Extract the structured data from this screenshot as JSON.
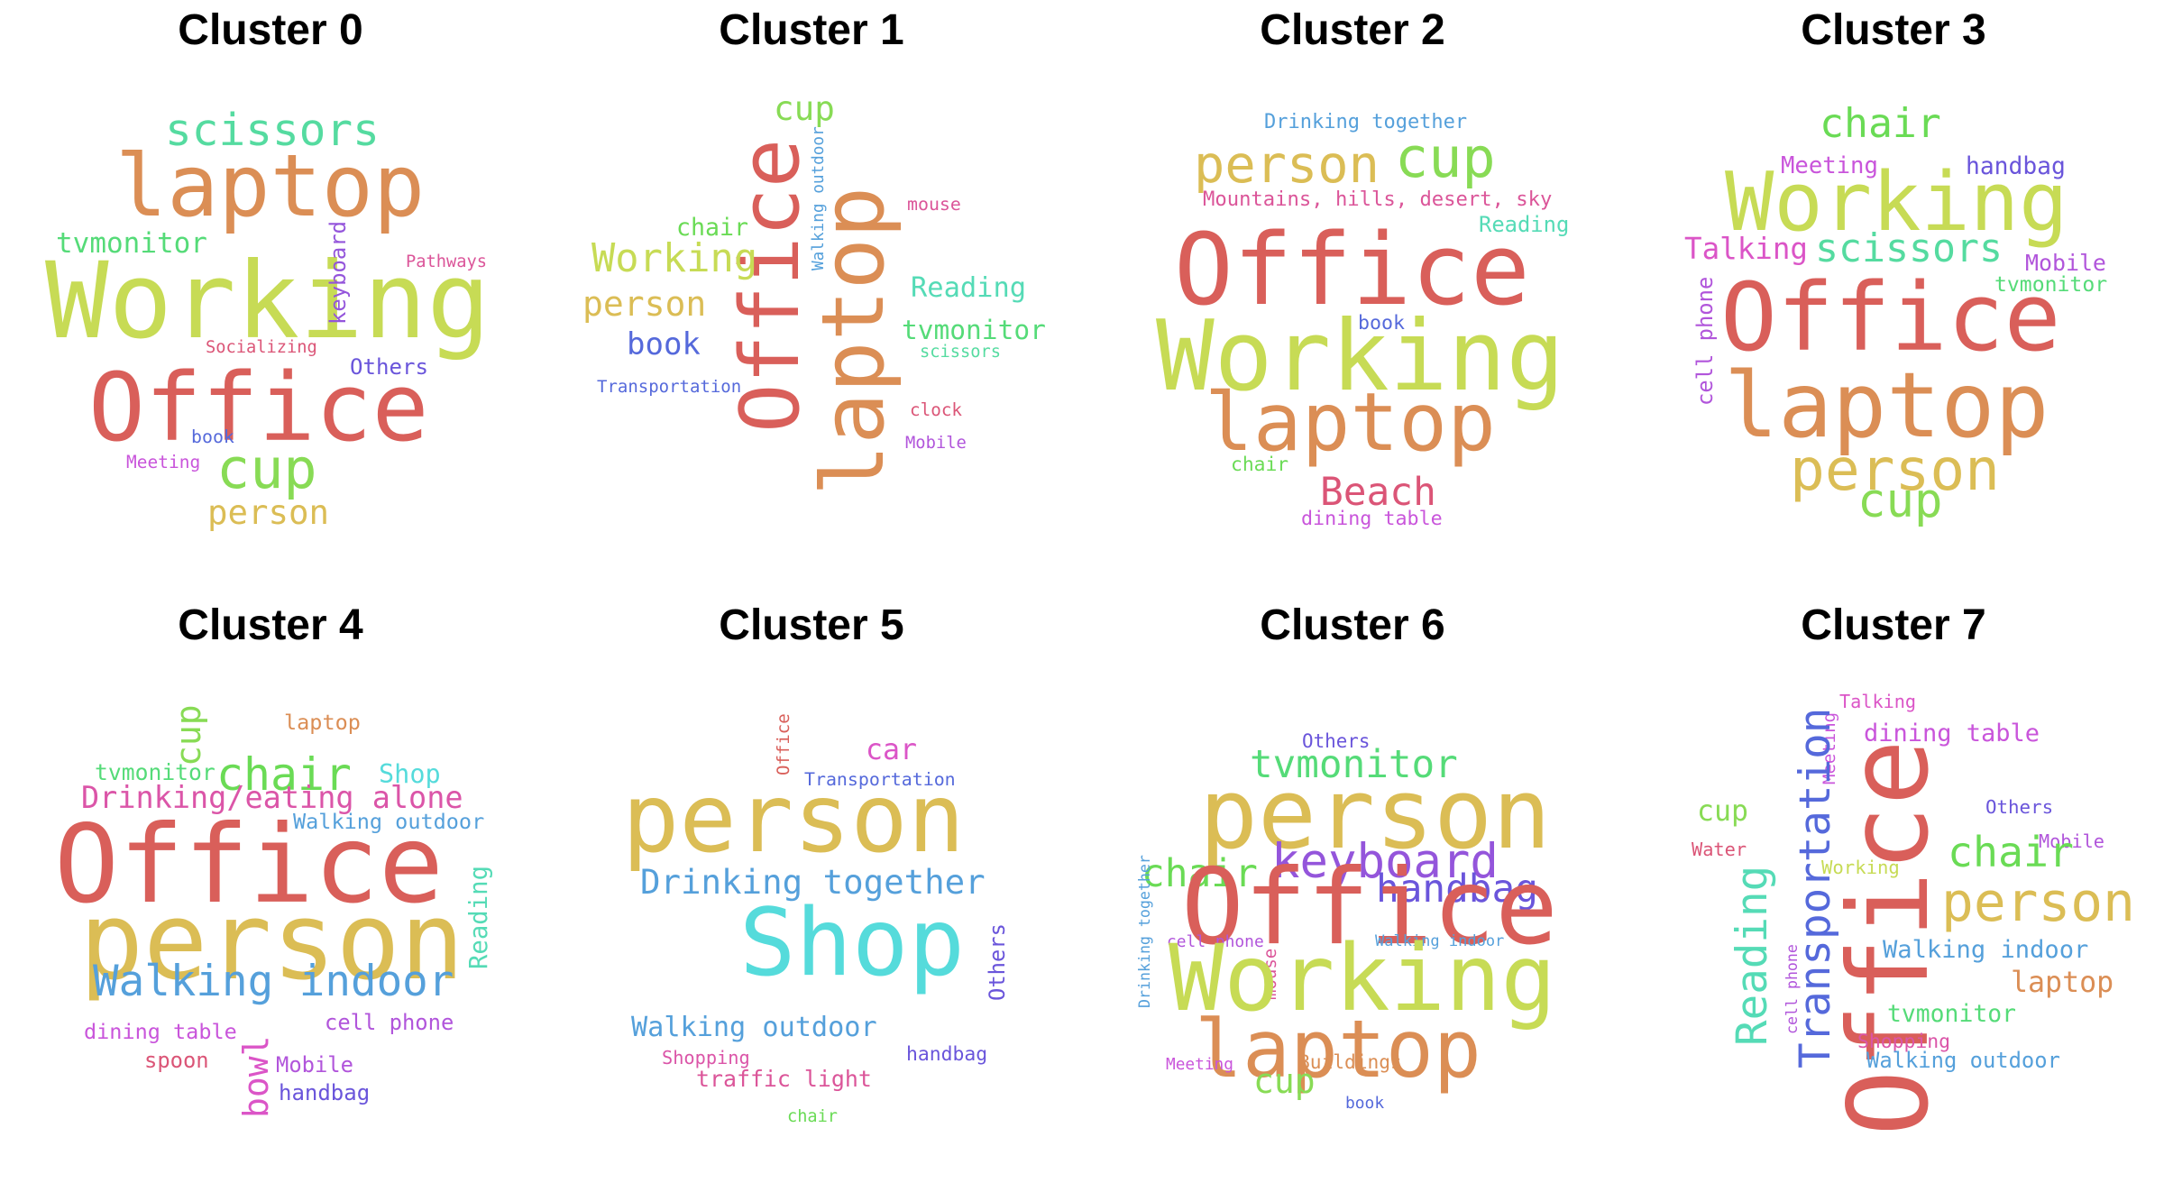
{
  "panels": [
    {
      "title": "Cluster 0",
      "words": [
        {
          "text": "Working",
          "color": "#c7db55"
        },
        {
          "text": "Office",
          "color": "#d95f5a"
        },
        {
          "text": "laptop",
          "color": "#db8e55"
        },
        {
          "text": "scissors",
          "color": "#55dba0"
        },
        {
          "text": "cup",
          "color": "#88db55"
        },
        {
          "text": "person",
          "color": "#dbbd55"
        },
        {
          "text": "tvmonitor",
          "color": "#55db78"
        },
        {
          "text": "keyboard",
          "color": "#9455db"
        },
        {
          "text": "Others",
          "color": "#6a55db"
        },
        {
          "text": "Pathways",
          "color": "#db5599"
        },
        {
          "text": "Socializing",
          "color": "#db5577"
        },
        {
          "text": "book",
          "color": "#5569db"
        },
        {
          "text": "Meeting",
          "color": "#c955db"
        }
      ]
    },
    {
      "title": "Cluster 1",
      "words": [
        {
          "text": "Office",
          "color": "#d95f5a"
        },
        {
          "text": "laptop",
          "color": "#db8e55"
        },
        {
          "text": "cup",
          "color": "#88db55"
        },
        {
          "text": "Walking outdoor",
          "color": "#55a0db"
        },
        {
          "text": "mouse",
          "color": "#db5599"
        },
        {
          "text": "chair",
          "color": "#6adb55"
        },
        {
          "text": "Working",
          "color": "#c7db55"
        },
        {
          "text": "person",
          "color": "#dbbd55"
        },
        {
          "text": "Reading",
          "color": "#55dbb6"
        },
        {
          "text": "tvmonitor",
          "color": "#55db78"
        },
        {
          "text": "book",
          "color": "#5569db"
        },
        {
          "text": "scissors",
          "color": "#55dba0"
        },
        {
          "text": "Transportation",
          "color": "#5569db"
        },
        {
          "text": "clock",
          "color": "#db5577"
        },
        {
          "text": "Mobile",
          "color": "#b155db"
        }
      ]
    },
    {
      "title": "Cluster 2",
      "words": [
        {
          "text": "Drinking together",
          "color": "#55a0db"
        },
        {
          "text": "person",
          "color": "#dbbd55"
        },
        {
          "text": "cup",
          "color": "#88db55"
        },
        {
          "text": "Mountains, hills, desert, sky",
          "color": "#db5599"
        },
        {
          "text": "Reading",
          "color": "#55dbb6"
        },
        {
          "text": "Office",
          "color": "#d95f5a"
        },
        {
          "text": "Working",
          "color": "#c7db55"
        },
        {
          "text": "book",
          "color": "#5569db"
        },
        {
          "text": "laptop",
          "color": "#db8e55"
        },
        {
          "text": "chair",
          "color": "#6adb55"
        },
        {
          "text": "Beach",
          "color": "#db5577"
        },
        {
          "text": "dining table",
          "color": "#c955db"
        }
      ]
    },
    {
      "title": "Cluster 3",
      "words": [
        {
          "text": "chair",
          "color": "#6adb55"
        },
        {
          "text": "Meeting",
          "color": "#c955db"
        },
        {
          "text": "handbag",
          "color": "#6a55db"
        },
        {
          "text": "Working",
          "color": "#c7db55"
        },
        {
          "text": "Talking",
          "color": "#db55c7"
        },
        {
          "text": "scissors",
          "color": "#55dba0"
        },
        {
          "text": "Mobile",
          "color": "#b155db"
        },
        {
          "text": "tvmonitor",
          "color": "#55db78"
        },
        {
          "text": "cell phone",
          "color": "#b155db"
        },
        {
          "text": "Office",
          "color": "#d95f5a"
        },
        {
          "text": "laptop",
          "color": "#db8e55"
        },
        {
          "text": "person",
          "color": "#dbbd55"
        },
        {
          "text": "cup",
          "color": "#88db55"
        }
      ]
    },
    {
      "title": "Cluster 4",
      "words": [
        {
          "text": "cup",
          "color": "#88db55"
        },
        {
          "text": "laptop",
          "color": "#db8e55"
        },
        {
          "text": "tvmonitor",
          "color": "#55db78"
        },
        {
          "text": "chair",
          "color": "#6adb55"
        },
        {
          "text": "Shop",
          "color": "#55dbdb"
        },
        {
          "text": "Drinking/eating alone",
          "color": "#db55a8"
        },
        {
          "text": "Walking outdoor",
          "color": "#55a0db"
        },
        {
          "text": "Office",
          "color": "#d95f5a"
        },
        {
          "text": "Reading",
          "color": "#55dbb6"
        },
        {
          "text": "person",
          "color": "#dbbd55"
        },
        {
          "text": "Walking indoor",
          "color": "#55a0db"
        },
        {
          "text": "dining table",
          "color": "#c955db"
        },
        {
          "text": "bowl",
          "color": "#db55c7"
        },
        {
          "text": "cell phone",
          "color": "#b155db"
        },
        {
          "text": "spoon",
          "color": "#db5577"
        },
        {
          "text": "Mobile",
          "color": "#b155db"
        },
        {
          "text": "handbag",
          "color": "#6a55db"
        }
      ]
    },
    {
      "title": "Cluster 5",
      "words": [
        {
          "text": "Office",
          "color": "#d95f5a"
        },
        {
          "text": "car",
          "color": "#db55c7"
        },
        {
          "text": "Transportation",
          "color": "#5569db"
        },
        {
          "text": "person",
          "color": "#dbbd55"
        },
        {
          "text": "Drinking together",
          "color": "#55a0db"
        },
        {
          "text": "Shop",
          "color": "#55dbdb"
        },
        {
          "text": "Others",
          "color": "#6a55db"
        },
        {
          "text": "Walking outdoor",
          "color": "#55a0db"
        },
        {
          "text": "Shopping",
          "color": "#db55a8"
        },
        {
          "text": "handbag",
          "color": "#6a55db"
        },
        {
          "text": "traffic light",
          "color": "#db5599"
        },
        {
          "text": "chair",
          "color": "#6adb55"
        }
      ]
    },
    {
      "title": "Cluster 6",
      "words": [
        {
          "text": "Others",
          "color": "#6a55db"
        },
        {
          "text": "tvmonitor",
          "color": "#55db78"
        },
        {
          "text": "person",
          "color": "#dbbd55"
        },
        {
          "text": "keyboard",
          "color": "#9455db"
        },
        {
          "text": "chair",
          "color": "#6adb55"
        },
        {
          "text": "handbag",
          "color": "#6a55db"
        },
        {
          "text": "Drinking together",
          "color": "#55a0db"
        },
        {
          "text": "Office",
          "color": "#d95f5a"
        },
        {
          "text": "cell phone",
          "color": "#b155db"
        },
        {
          "text": "mouse",
          "color": "#db5599"
        },
        {
          "text": "Walking indoor",
          "color": "#55a0db"
        },
        {
          "text": "Working",
          "color": "#c7db55"
        },
        {
          "text": "laptop",
          "color": "#db8e55"
        },
        {
          "text": "Meeting",
          "color": "#c955db"
        },
        {
          "text": "Buildings",
          "color": "#db8e55"
        },
        {
          "text": "cup",
          "color": "#88db55"
        },
        {
          "text": "book",
          "color": "#5569db"
        }
      ]
    },
    {
      "title": "Cluster 7",
      "words": [
        {
          "text": "Talking",
          "color": "#db55c7"
        },
        {
          "text": "Meeting",
          "color": "#c955db"
        },
        {
          "text": "dining table",
          "color": "#c955db"
        },
        {
          "text": "Transportation",
          "color": "#5569db"
        },
        {
          "text": "cup",
          "color": "#88db55"
        },
        {
          "text": "Office",
          "color": "#d95f5a"
        },
        {
          "text": "Others",
          "color": "#6a55db"
        },
        {
          "text": "Water",
          "color": "#db5577"
        },
        {
          "text": "Mobile",
          "color": "#b155db"
        },
        {
          "text": "chair",
          "color": "#6adb55"
        },
        {
          "text": "Working",
          "color": "#c7db55"
        },
        {
          "text": "person",
          "color": "#dbbd55"
        },
        {
          "text": "Reading",
          "color": "#55dbb6"
        },
        {
          "text": "cell phone",
          "color": "#b155db"
        },
        {
          "text": "Walking indoor",
          "color": "#55a0db"
        },
        {
          "text": "laptop",
          "color": "#db8e55"
        },
        {
          "text": "tvmonitor",
          "color": "#55db78"
        },
        {
          "text": "Shopping",
          "color": "#db55a8"
        },
        {
          "text": "Walking outdoor",
          "color": "#55a0db"
        }
      ]
    }
  ]
}
